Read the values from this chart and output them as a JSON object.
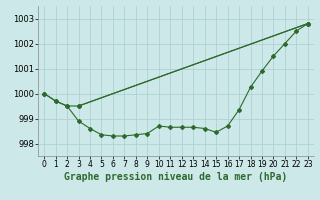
{
  "background_color": "#cce8e8",
  "line_color": "#2d6a2d",
  "grid_color": "#aacece",
  "title": "Graphe pression niveau de la mer (hPa)",
  "xlim": [
    -0.5,
    23.5
  ],
  "ylim": [
    997.5,
    1003.5
  ],
  "yticks": [
    998,
    999,
    1000,
    1001,
    1002,
    1003
  ],
  "xticks": [
    0,
    1,
    2,
    3,
    4,
    5,
    6,
    7,
    8,
    9,
    10,
    11,
    12,
    13,
    14,
    15,
    16,
    17,
    18,
    19,
    20,
    21,
    22,
    23
  ],
  "series1_x": [
    0,
    1,
    2,
    3,
    23
  ],
  "series1_y": [
    1000.0,
    999.7,
    999.5,
    999.5,
    1002.8
  ],
  "series2_x": [
    0,
    1,
    2,
    3,
    4,
    5,
    6,
    7,
    8,
    9,
    10,
    11,
    12,
    13,
    14,
    15,
    16,
    17,
    18,
    19,
    20,
    21,
    22,
    23
  ],
  "series2_y": [
    1000.0,
    999.7,
    999.5,
    998.9,
    998.6,
    998.35,
    998.3,
    998.3,
    998.35,
    998.4,
    998.7,
    998.65,
    998.65,
    998.65,
    998.6,
    998.45,
    998.7,
    999.35,
    1000.25,
    1000.9,
    1001.5,
    1002.0,
    1002.5,
    1002.8
  ],
  "series3_x": [
    3,
    23
  ],
  "series3_y": [
    999.5,
    1002.8
  ],
  "marker_style": "D",
  "marker_size": 2.0,
  "linewidth": 0.8,
  "title_fontsize": 7,
  "tick_fontsize": 5.5,
  "ytick_fontsize": 6
}
